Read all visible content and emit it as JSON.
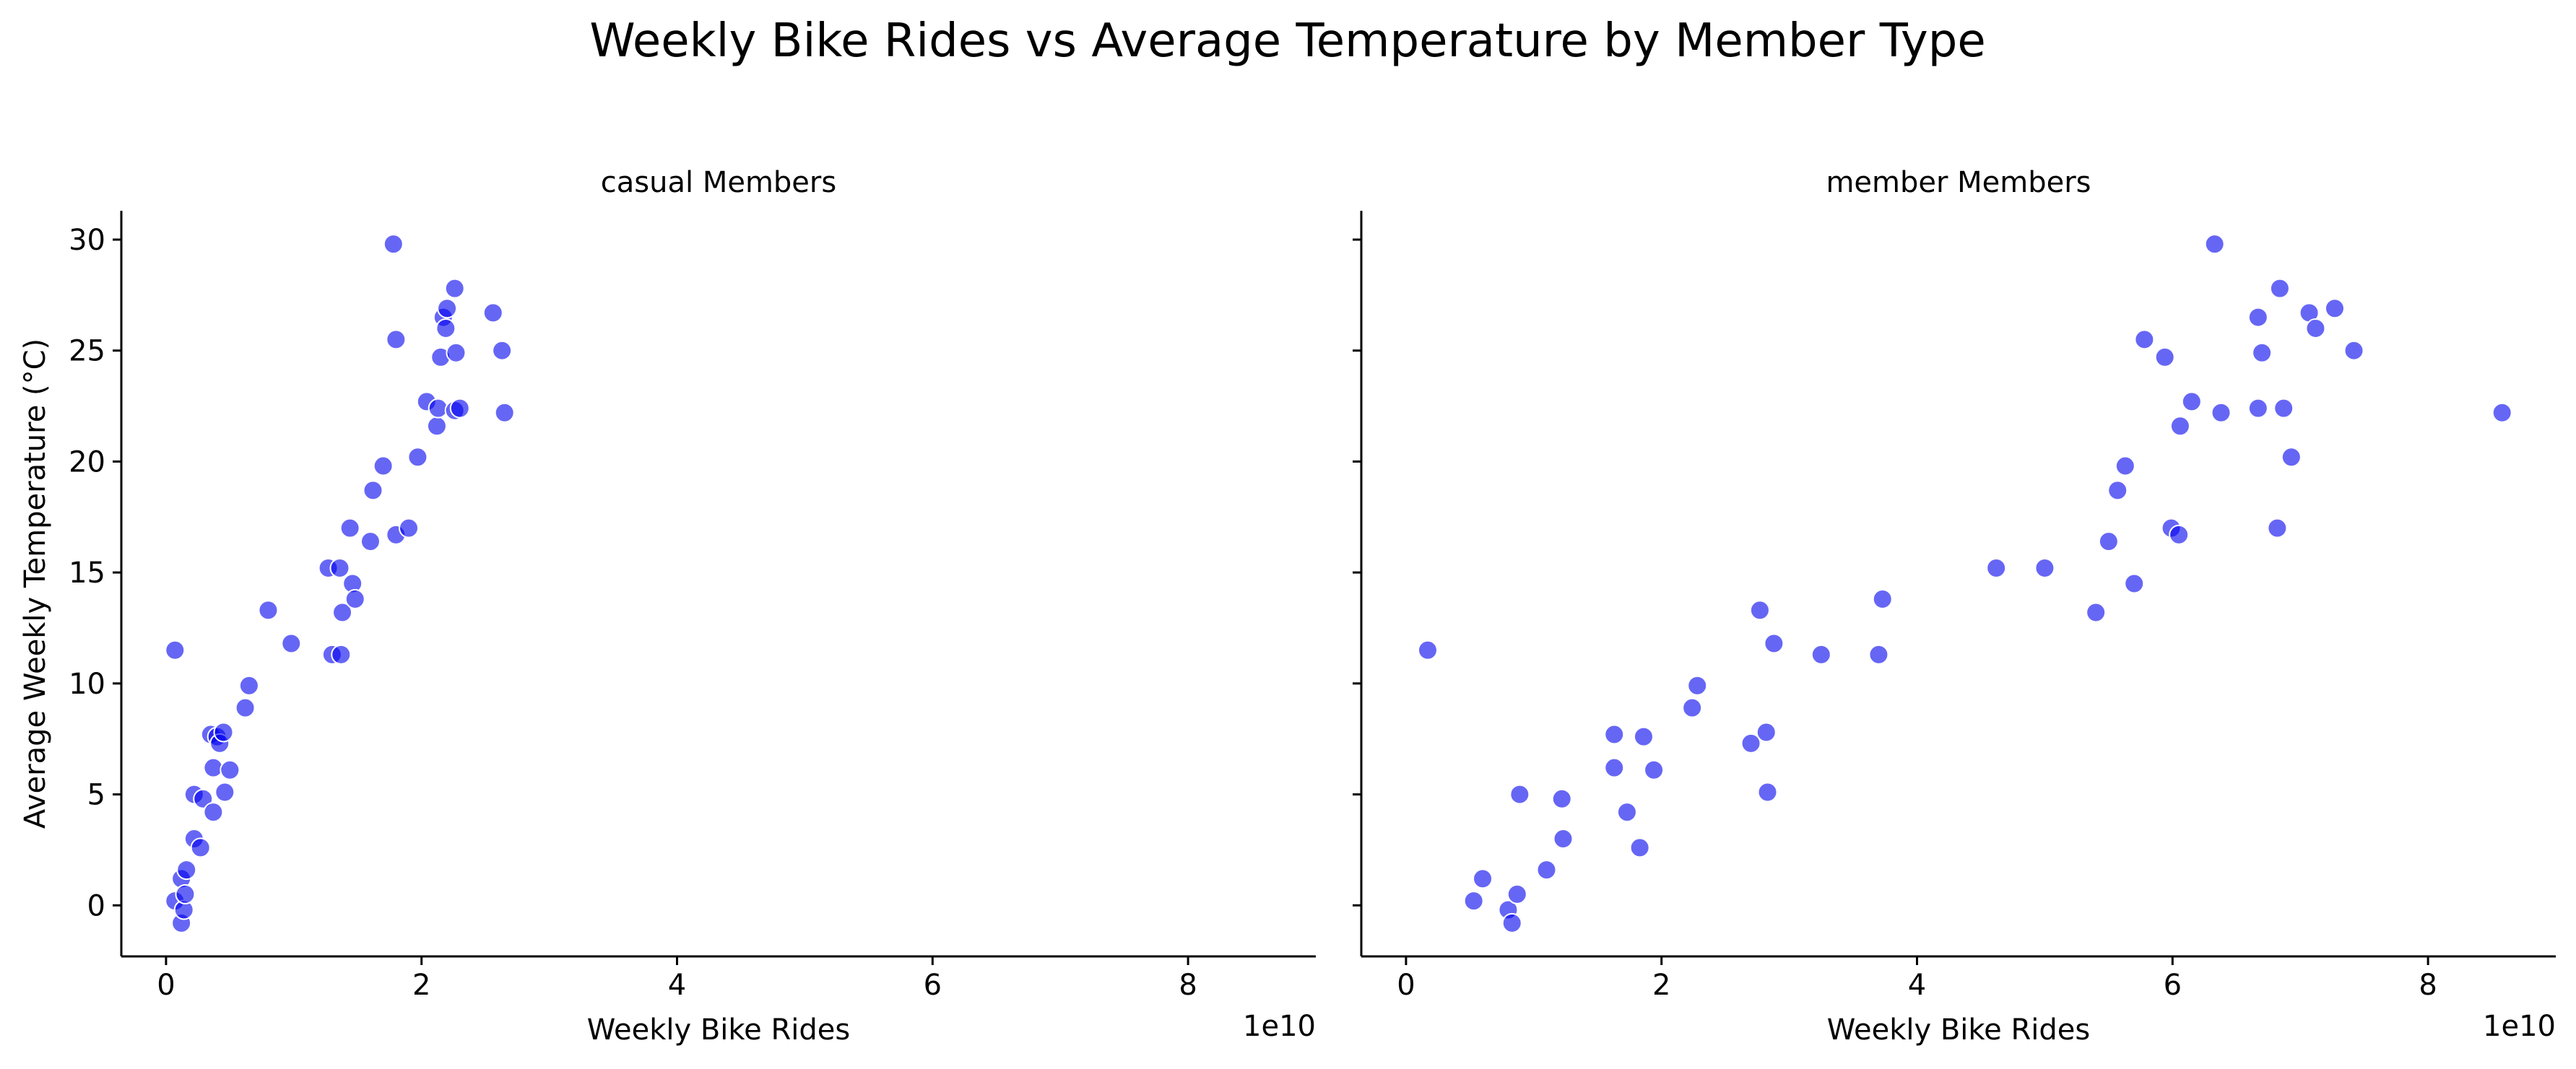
{
  "title": "Weekly Bike Rides vs Average Temperature by Member Type",
  "colors": {
    "point": "#0000ee",
    "point_opacity": 0.6
  },
  "chart_data": [
    {
      "type": "scatter",
      "title": "casual Members",
      "xlabel": "Weekly Bike Rides",
      "ylabel": "Average Weekly Temperature (°C)",
      "x_offset_label": "1e10",
      "xlim": [
        -0.35,
        9.0
      ],
      "ylim": [
        -2.3,
        31.3
      ],
      "xticks": [
        0,
        2,
        4,
        6,
        8
      ],
      "xtick_labels": [
        "0",
        "2",
        "4",
        "6",
        "8"
      ],
      "yticks": [
        0,
        5,
        10,
        15,
        20,
        25,
        30
      ],
      "ytick_labels": [
        "0",
        "5",
        "10",
        "15",
        "20",
        "25",
        "30"
      ],
      "x_unit_note": "x values in units of 1e10",
      "points": [
        {
          "x": 0.07,
          "y": 11.5
        },
        {
          "x": 0.07,
          "y": 0.2
        },
        {
          "x": 0.12,
          "y": -0.8
        },
        {
          "x": 0.12,
          "y": 1.2
        },
        {
          "x": 0.14,
          "y": -0.2
        },
        {
          "x": 0.15,
          "y": 0.5
        },
        {
          "x": 0.16,
          "y": 1.6
        },
        {
          "x": 0.22,
          "y": 3.0
        },
        {
          "x": 0.22,
          "y": 5.0
        },
        {
          "x": 0.27,
          "y": 2.6
        },
        {
          "x": 0.29,
          "y": 4.8
        },
        {
          "x": 0.35,
          "y": 7.7
        },
        {
          "x": 0.37,
          "y": 6.2
        },
        {
          "x": 0.37,
          "y": 4.2
        },
        {
          "x": 0.4,
          "y": 7.6
        },
        {
          "x": 0.42,
          "y": 7.3
        },
        {
          "x": 0.45,
          "y": 7.8
        },
        {
          "x": 0.46,
          "y": 5.1
        },
        {
          "x": 0.5,
          "y": 6.1
        },
        {
          "x": 0.62,
          "y": 8.9
        },
        {
          "x": 0.65,
          "y": 9.9
        },
        {
          "x": 0.8,
          "y": 13.3
        },
        {
          "x": 0.98,
          "y": 11.8
        },
        {
          "x": 1.27,
          "y": 15.2
        },
        {
          "x": 1.3,
          "y": 11.3
        },
        {
          "x": 1.36,
          "y": 15.2
        },
        {
          "x": 1.37,
          "y": 11.3
        },
        {
          "x": 1.38,
          "y": 13.2
        },
        {
          "x": 1.44,
          "y": 17.0
        },
        {
          "x": 1.46,
          "y": 14.5
        },
        {
          "x": 1.48,
          "y": 13.8
        },
        {
          "x": 1.6,
          "y": 16.4
        },
        {
          "x": 1.62,
          "y": 18.7
        },
        {
          "x": 1.7,
          "y": 19.8
        },
        {
          "x": 1.78,
          "y": 29.8
        },
        {
          "x": 1.8,
          "y": 25.5
        },
        {
          "x": 1.8,
          "y": 16.7
        },
        {
          "x": 1.9,
          "y": 17.0
        },
        {
          "x": 1.97,
          "y": 20.2
        },
        {
          "x": 2.04,
          "y": 22.7
        },
        {
          "x": 2.12,
          "y": 21.6
        },
        {
          "x": 2.13,
          "y": 22.4
        },
        {
          "x": 2.15,
          "y": 24.7
        },
        {
          "x": 2.17,
          "y": 26.5
        },
        {
          "x": 2.19,
          "y": 26.0
        },
        {
          "x": 2.2,
          "y": 26.9
        },
        {
          "x": 2.26,
          "y": 27.8
        },
        {
          "x": 2.26,
          "y": 22.3
        },
        {
          "x": 2.27,
          "y": 24.9
        },
        {
          "x": 2.3,
          "y": 22.4
        },
        {
          "x": 2.56,
          "y": 26.7
        },
        {
          "x": 2.63,
          "y": 25.0
        },
        {
          "x": 2.65,
          "y": 22.2
        }
      ]
    },
    {
      "type": "scatter",
      "title": "member Members",
      "xlabel": "Weekly Bike Rides",
      "ylabel": "",
      "x_offset_label": "1e10",
      "xlim": [
        -0.35,
        9.0
      ],
      "ylim": [
        -2.3,
        31.3
      ],
      "xticks": [
        0,
        2,
        4,
        6,
        8
      ],
      "xtick_labels": [
        "0",
        "2",
        "4",
        "6",
        "8"
      ],
      "yticks": [
        0,
        5,
        10,
        15,
        20,
        25,
        30
      ],
      "ytick_labels": [],
      "x_unit_note": "x values in units of 1e10",
      "points": [
        {
          "x": 0.17,
          "y": 11.5
        },
        {
          "x": 0.53,
          "y": 0.2
        },
        {
          "x": 0.6,
          "y": 1.2
        },
        {
          "x": 0.8,
          "y": -0.2
        },
        {
          "x": 0.83,
          "y": -0.8
        },
        {
          "x": 0.87,
          "y": 0.5
        },
        {
          "x": 0.89,
          "y": 5.0
        },
        {
          "x": 1.1,
          "y": 1.6
        },
        {
          "x": 1.22,
          "y": 4.8
        },
        {
          "x": 1.23,
          "y": 3.0
        },
        {
          "x": 1.63,
          "y": 7.7
        },
        {
          "x": 1.63,
          "y": 6.2
        },
        {
          "x": 1.73,
          "y": 4.2
        },
        {
          "x": 1.83,
          "y": 2.6
        },
        {
          "x": 1.86,
          "y": 7.6
        },
        {
          "x": 1.94,
          "y": 6.1
        },
        {
          "x": 2.24,
          "y": 8.9
        },
        {
          "x": 2.28,
          "y": 9.9
        },
        {
          "x": 2.7,
          "y": 7.3
        },
        {
          "x": 2.77,
          "y": 13.3
        },
        {
          "x": 2.82,
          "y": 7.8
        },
        {
          "x": 2.83,
          "y": 5.1
        },
        {
          "x": 2.88,
          "y": 11.8
        },
        {
          "x": 3.25,
          "y": 11.3
        },
        {
          "x": 3.7,
          "y": 11.3
        },
        {
          "x": 3.73,
          "y": 13.8
        },
        {
          "x": 4.62,
          "y": 15.2
        },
        {
          "x": 5.0,
          "y": 15.2
        },
        {
          "x": 5.4,
          "y": 13.2
        },
        {
          "x": 5.5,
          "y": 16.4
        },
        {
          "x": 5.57,
          "y": 18.7
        },
        {
          "x": 5.63,
          "y": 19.8
        },
        {
          "x": 5.7,
          "y": 14.5
        },
        {
          "x": 5.78,
          "y": 25.5
        },
        {
          "x": 5.94,
          "y": 24.7
        },
        {
          "x": 5.99,
          "y": 17.0
        },
        {
          "x": 6.05,
          "y": 16.7
        },
        {
          "x": 6.06,
          "y": 21.6
        },
        {
          "x": 6.15,
          "y": 22.7
        },
        {
          "x": 6.33,
          "y": 29.8
        },
        {
          "x": 6.38,
          "y": 22.2
        },
        {
          "x": 6.67,
          "y": 26.5
        },
        {
          "x": 6.67,
          "y": 22.4
        },
        {
          "x": 6.7,
          "y": 24.9
        },
        {
          "x": 6.82,
          "y": 17.0
        },
        {
          "x": 6.84,
          "y": 27.8
        },
        {
          "x": 6.87,
          "y": 22.4
        },
        {
          "x": 6.93,
          "y": 20.2
        },
        {
          "x": 7.07,
          "y": 26.7
        },
        {
          "x": 7.12,
          "y": 26.0
        },
        {
          "x": 7.27,
          "y": 26.9
        },
        {
          "x": 7.42,
          "y": 25.0
        },
        {
          "x": 8.58,
          "y": 22.2
        }
      ]
    }
  ]
}
